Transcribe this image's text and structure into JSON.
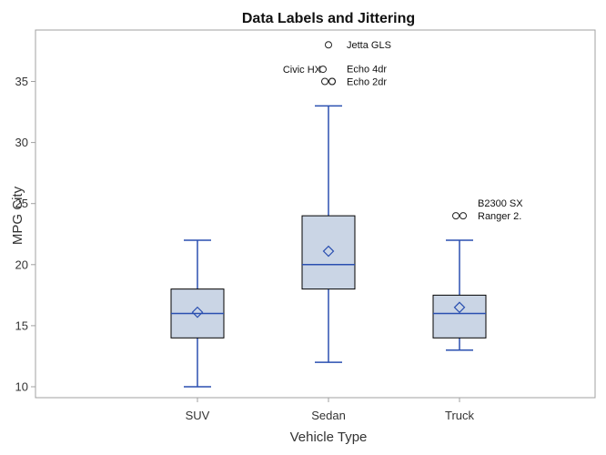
{
  "chart_data": {
    "type": "box",
    "title": "Data Labels and Jittering",
    "xlabel": "Vehicle Type",
    "ylabel": "MPG City",
    "ylim": [
      9,
      39
    ],
    "yticks": [
      10,
      15,
      20,
      25,
      30,
      35
    ],
    "grid": false,
    "categories": [
      "SUV",
      "Sedan",
      "Truck"
    ],
    "colors": {
      "box_fill": "#cad5e5",
      "box_stroke": "#000000",
      "whisker": "#2a4fb0",
      "outlier": "#222222"
    },
    "boxes": [
      {
        "category": "SUV",
        "min": 10,
        "q1": 14,
        "median": 16,
        "q3": 18,
        "max": 22,
        "mean": 16.1,
        "outliers": []
      },
      {
        "category": "Sedan",
        "min": 12,
        "q1": 18,
        "median": 20,
        "q3": 24,
        "max": 33,
        "mean": 21.1,
        "outliers": [
          {
            "value": 38,
            "label": "Jetta GLS"
          },
          {
            "value": 36,
            "label": "Civic HX"
          },
          {
            "value": 35,
            "label": ""
          },
          {
            "value": 35,
            "label": "Echo 4dr"
          },
          {
            "value": 35,
            "label": "Echo 2dr"
          }
        ]
      },
      {
        "category": "Truck",
        "min": 13,
        "q1": 14,
        "median": 16,
        "q3": 17.5,
        "max": 22,
        "mean": 16.5,
        "outliers": [
          {
            "value": 24,
            "label": "B2300 SX"
          },
          {
            "value": 24,
            "label": "Ranger 2."
          }
        ]
      }
    ]
  }
}
